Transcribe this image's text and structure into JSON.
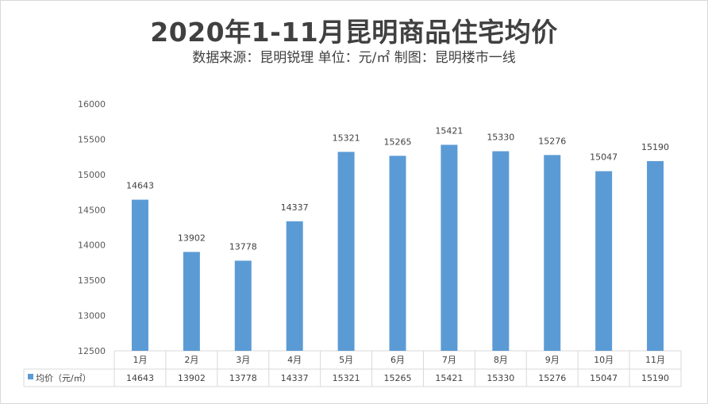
{
  "title": "2020年1-11月昆明商品住宅均价",
  "subtitle": "数据来源：昆明锐理 单位：元/㎡ 制图：昆明楼市一线",
  "colors": {
    "bar": "#5b9bd5",
    "grid": "#d9d9d9",
    "text": "#404040"
  },
  "chart_data": {
    "type": "bar",
    "title": "2020年1-11月昆明商品住宅均价",
    "categories": [
      "1月",
      "2月",
      "3月",
      "4月",
      "5月",
      "6月",
      "7月",
      "8月",
      "9月",
      "10月",
      "11月"
    ],
    "series": [
      {
        "name": "均价（元/㎡）",
        "values": [
          14643,
          13902,
          13778,
          14337,
          15321,
          15265,
          15421,
          15330,
          15276,
          15047,
          15190
        ]
      }
    ],
    "ylim": [
      12500,
      16000
    ],
    "yticks": [
      12500,
      13000,
      13500,
      14000,
      14500,
      15000,
      15500,
      16000
    ],
    "grid": false,
    "data_table": true,
    "legend_in_table": true
  }
}
